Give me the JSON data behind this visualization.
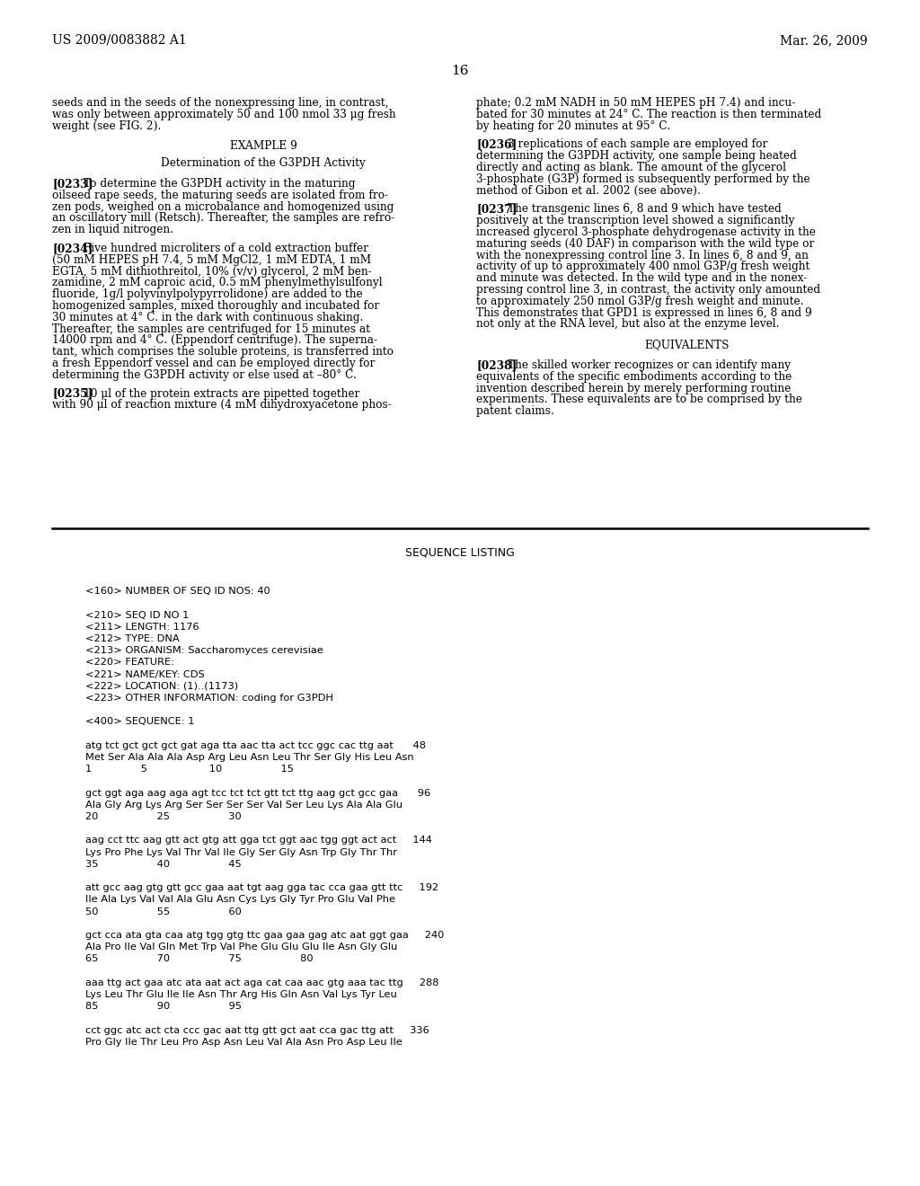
{
  "bg_color": "#ffffff",
  "header_left": "US 2009/0083882 A1",
  "header_right": "Mar. 26, 2009",
  "page_number": "16",
  "left_col_paragraphs": [
    {
      "type": "body",
      "text": "seeds and in the seeds of the nonexpressing line, in contrast,\nwas only between approximately 50 and 100 nmol 33 μg fresh\nweight (see FIG. 2)."
    },
    {
      "type": "spacer",
      "size": 10
    },
    {
      "type": "section_center",
      "text": "EXAMPLE 9"
    },
    {
      "type": "spacer",
      "size": 6
    },
    {
      "type": "section_center",
      "text": "Determination of the G3PDH Activity"
    },
    {
      "type": "spacer",
      "size": 10
    },
    {
      "type": "body_indent",
      "label": "[0233]",
      "text": "To determine the G3PDH activity in the maturing\noilseed rape seeds, the maturing seeds are isolated from fro-\nzen pods, weighed on a microbalance and homogenized using\nan oscillatory mill (Retsch). Thereafter, the samples are refro-\nzen in liquid nitrogen."
    },
    {
      "type": "spacer",
      "size": 8
    },
    {
      "type": "body_indent",
      "label": "[0234]",
      "text": "Five hundred microliters of a cold extraction buffer\n(50 mM HEPES pH 7.4, 5 mM MgCl2, 1 mM EDTA, 1 mM\nEGTA, 5 mM dithiothreitol, 10% (v/v) glycerol, 2 mM ben-\nzamidine, 2 mM caproic acid, 0.5 mM phenylmethylsulfonyl\nfluoride, 1g/l polyvinylpolypyrrolidone) are added to the\nhomogenized samples, mixed thoroughly and incubated for\n30 minutes at 4° C. in the dark with continuous shaking.\nThereafter, the samples are centrifuged for 15 minutes at\n14000 rpm and 4° C. (Eppendorf centrifuge). The superna-\ntant, which comprises the soluble proteins, is transferred into\na fresh Eppendorf vessel and can be employed directly for\ndetermining the G3PDH activity or else used at –80° C."
    },
    {
      "type": "spacer",
      "size": 8
    },
    {
      "type": "body_indent",
      "label": "[0235]",
      "text": "10 μl of the protein extracts are pipetted together\nwith 90 μl of reaction mixture (4 mM dihydroxyacetone phos-"
    }
  ],
  "right_col_paragraphs": [
    {
      "type": "body",
      "text": "phate; 0.2 mM NADH in 50 mM HEPES pH 7.4) and incu-\nbated for 30 minutes at 24° C. The reaction is then terminated\nby heating for 20 minutes at 95° C."
    },
    {
      "type": "spacer",
      "size": 8
    },
    {
      "type": "body_indent",
      "label": "[0236]",
      "text": "3 replications of each sample are employed for\ndetermining the G3PDH activity, one sample being heated\ndirectly and acting as blank. The amount of the glycerol\n3-phosphate (G3P) formed is subsequently performed by the\nmethod of Gibon et al. 2002 (see above)."
    },
    {
      "type": "spacer",
      "size": 8
    },
    {
      "type": "body_indent",
      "label": "[0237]",
      "text": "The transgenic lines 6, 8 and 9 which have tested\npositively at the transcription level showed a significantly\nincreased glycerol 3-phosphate dehydrogenase activity in the\nmaturing seeds (40 DAF) in comparison with the wild type or\nwith the nonexpressing control line 3. In lines 6, 8 and 9, an\nactivity of up to approximately 400 nmol G3P/g fresh weight\nand minute was detected. In the wild type and in the nonex-\npressing control line 3, in contrast, the activity only amounted\nto approximately 250 nmol G3P/g fresh weight and minute.\nThis demonstrates that GPD1 is expressed in lines 6, 8 and 9\nnot only at the RNA level, but also at the enzyme level."
    },
    {
      "type": "spacer",
      "size": 10
    },
    {
      "type": "section_center",
      "text": "EQUIVALENTS"
    },
    {
      "type": "spacer",
      "size": 10
    },
    {
      "type": "body_indent",
      "label": "[0238]",
      "text": "The skilled worker recognizes or can identify many\nequivalents of the specific embodiments according to the\ninvention described herein by merely performing routine\nexperiments. These equivalents are to be comprised by the\npatent claims."
    }
  ],
  "sequence_section_title": "SEQUENCE LISTING",
  "sequence_lines": [
    "",
    "<160> NUMBER OF SEQ ID NOS: 40",
    "",
    "<210> SEQ ID NO 1",
    "<211> LENGTH: 1176",
    "<212> TYPE: DNA",
    "<213> ORGANISM: Saccharomyces cerevisiae",
    "<220> FEATURE:",
    "<221> NAME/KEY: CDS",
    "<222> LOCATION: (1)..(1173)",
    "<223> OTHER INFORMATION: coding for G3PDH",
    "",
    "<400> SEQUENCE: 1",
    "",
    "atg tct gct gct gct gat aga tta aac tta act tcc ggc cac ttg aat      48",
    "Met Ser Ala Ala Ala Asp Arg Leu Asn Leu Thr Ser Gly His Leu Asn",
    "1               5                   10                  15",
    "",
    "gct ggt aga aag aga agt tcc tct tct gtt tct ttg aag gct gcc gaa      96",
    "Ala Gly Arg Lys Arg Ser Ser Ser Ser Val Ser Leu Lys Ala Ala Glu",
    "20                  25                  30",
    "",
    "aag cct ttc aag gtt act gtg att gga tct ggt aac tgg ggt act act     144",
    "Lys Pro Phe Lys Val Thr Val Ile Gly Ser Gly Asn Trp Gly Thr Thr",
    "35                  40                  45",
    "",
    "att gcc aag gtg gtt gcc gaa aat tgt aag gga tac cca gaa gtt ttc     192",
    "Ile Ala Lys Val Val Ala Glu Asn Cys Lys Gly Tyr Pro Glu Val Phe",
    "50                  55                  60",
    "",
    "gct cca ata gta caa atg tgg gtg ttc gaa gaa gag atc aat ggt gaa     240",
    "Ala Pro Ile Val Gln Met Trp Val Phe Glu Glu Glu Ile Asn Gly Glu",
    "65                  70                  75                  80",
    "",
    "aaa ttg act gaa atc ata aat act aga cat caa aac gtg aaa tac ttg     288",
    "Lys Leu Thr Glu Ile Ile Asn Thr Arg His Gln Asn Val Lys Tyr Leu",
    "85                  90                  95",
    "",
    "cct ggc atc act cta ccc gac aat ttg gtt gct aat cca gac ttg att     336",
    "Pro Gly Ile Thr Leu Pro Asp Asn Leu Val Ala Asn Pro Asp Leu Ile",
    ""
  ]
}
